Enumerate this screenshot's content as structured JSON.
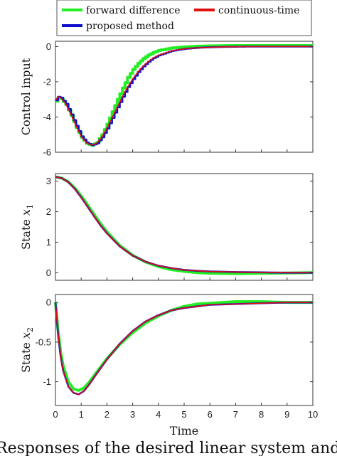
{
  "chart_data": [
    {
      "type": "line",
      "ylabel": "Control input",
      "xlim": [
        0,
        10
      ],
      "ylim": [
        -6,
        0.3
      ],
      "yticks": [
        0,
        -2,
        -4,
        -6
      ],
      "x_ticks_shown": false,
      "series": [
        {
          "name": "forward difference",
          "color": "#22ee22",
          "style": "step",
          "x": [
            0,
            0.1,
            0.2,
            0.4,
            0.6,
            0.8,
            1.0,
            1.2,
            1.4,
            1.6,
            1.8,
            2.0,
            2.2,
            2.4,
            2.6,
            2.8,
            3.0,
            3.2,
            3.4,
            3.6,
            3.8,
            4.0,
            4.5,
            5.0,
            5.5,
            6.0,
            6.5,
            7.0,
            7.5,
            8.0,
            9.0,
            10.0
          ],
          "y": [
            -3.1,
            -2.9,
            -2.95,
            -3.3,
            -3.9,
            -4.6,
            -5.15,
            -5.5,
            -5.6,
            -5.45,
            -5.0,
            -4.4,
            -3.7,
            -3.0,
            -2.35,
            -1.75,
            -1.3,
            -0.95,
            -0.68,
            -0.48,
            -0.33,
            -0.22,
            -0.08,
            -0.02,
            0.02,
            0.04,
            0.05,
            0.06,
            0.06,
            0.06,
            0.06,
            0.06
          ]
        },
        {
          "name": "continuous-time",
          "color": "#e01010",
          "style": "line",
          "x": [
            0,
            0.1,
            0.2,
            0.4,
            0.6,
            0.8,
            1.0,
            1.2,
            1.4,
            1.6,
            1.8,
            2.0,
            2.2,
            2.4,
            2.6,
            2.8,
            3.0,
            3.2,
            3.4,
            3.6,
            3.8,
            4.0,
            4.5,
            5.0,
            5.5,
            6.0,
            6.5,
            7.0,
            7.5,
            8.0,
            9.0,
            10.0
          ],
          "y": [
            -3.05,
            -2.85,
            -2.9,
            -3.25,
            -3.85,
            -4.5,
            -5.1,
            -5.45,
            -5.6,
            -5.5,
            -5.15,
            -4.65,
            -4.05,
            -3.45,
            -2.85,
            -2.3,
            -1.85,
            -1.45,
            -1.12,
            -0.86,
            -0.65,
            -0.5,
            -0.25,
            -0.13,
            -0.07,
            -0.04,
            -0.02,
            -0.01,
            0.0,
            0.0,
            0.0,
            0.0
          ]
        },
        {
          "name": "proposed method",
          "color": "#1010cc",
          "style": "step",
          "x": [
            0,
            0.1,
            0.2,
            0.4,
            0.6,
            0.8,
            1.0,
            1.2,
            1.4,
            1.6,
            1.8,
            2.0,
            2.2,
            2.4,
            2.6,
            2.8,
            3.0,
            3.2,
            3.4,
            3.6,
            3.8,
            4.0,
            4.5,
            5.0,
            5.5,
            6.0,
            6.5,
            7.0,
            7.5,
            8.0,
            9.0,
            10.0
          ],
          "y": [
            -3.05,
            -2.85,
            -2.9,
            -3.25,
            -3.85,
            -4.5,
            -5.1,
            -5.45,
            -5.6,
            -5.5,
            -5.15,
            -4.65,
            -4.05,
            -3.45,
            -2.85,
            -2.3,
            -1.85,
            -1.45,
            -1.12,
            -0.86,
            -0.65,
            -0.5,
            -0.25,
            -0.13,
            -0.07,
            -0.04,
            -0.02,
            -0.01,
            0.0,
            0.0,
            0.0,
            0.0
          ]
        }
      ]
    },
    {
      "type": "line",
      "ylabel_prefix": "State ",
      "ylabel_var": "x",
      "ylabel_sub": "1",
      "xlim": [
        0,
        10
      ],
      "ylim": [
        -0.25,
        3.25
      ],
      "yticks": [
        3,
        2,
        1,
        0
      ],
      "x_ticks_shown": false,
      "series": [
        {
          "name": "forward difference",
          "color": "#22ee22",
          "x": [
            0,
            0.25,
            0.5,
            0.75,
            1.0,
            1.25,
            1.5,
            1.75,
            2.0,
            2.5,
            3.0,
            3.5,
            4.0,
            4.5,
            5.0,
            5.5,
            6.0,
            7.0,
            8.0,
            9.0,
            10.0
          ],
          "y": [
            3.14,
            3.1,
            2.98,
            2.78,
            2.52,
            2.22,
            1.91,
            1.61,
            1.34,
            0.89,
            0.57,
            0.35,
            0.2,
            0.1,
            0.04,
            0.0,
            -0.02,
            -0.03,
            -0.02,
            -0.01,
            0.0
          ]
        },
        {
          "name": "continuous-time",
          "color": "#e01010",
          "x": [
            0,
            0.25,
            0.5,
            0.75,
            1.0,
            1.25,
            1.5,
            1.75,
            2.0,
            2.5,
            3.0,
            3.5,
            4.0,
            4.5,
            5.0,
            5.5,
            6.0,
            7.0,
            8.0,
            9.0,
            10.0
          ],
          "y": [
            3.14,
            3.1,
            2.97,
            2.75,
            2.47,
            2.16,
            1.85,
            1.55,
            1.29,
            0.86,
            0.56,
            0.36,
            0.23,
            0.15,
            0.09,
            0.06,
            0.04,
            0.02,
            0.01,
            0.0,
            0.0
          ]
        },
        {
          "name": "proposed method",
          "color": "#1010cc",
          "x": [
            0,
            0.25,
            0.5,
            0.75,
            1.0,
            1.25,
            1.5,
            1.75,
            2.0,
            2.5,
            3.0,
            3.5,
            4.0,
            4.5,
            5.0,
            5.5,
            6.0,
            7.0,
            8.0,
            9.0,
            10.0
          ],
          "y": [
            3.14,
            3.1,
            2.97,
            2.75,
            2.47,
            2.16,
            1.85,
            1.55,
            1.29,
            0.86,
            0.56,
            0.36,
            0.23,
            0.15,
            0.09,
            0.06,
            0.04,
            0.02,
            0.01,
            0.0,
            0.0
          ]
        }
      ]
    },
    {
      "type": "line",
      "ylabel_prefix": "State ",
      "ylabel_var": "x",
      "ylabel_sub": "2",
      "xlabel": "Time",
      "xlim": [
        0,
        10
      ],
      "ylim": [
        -1.3,
        0.1
      ],
      "yticks": [
        0,
        -0.5,
        -1
      ],
      "xticks": [
        0,
        1,
        2,
        3,
        4,
        5,
        6,
        7,
        8,
        9,
        10
      ],
      "series": [
        {
          "name": "forward difference",
          "color": "#22ee22",
          "x": [
            0,
            0.1,
            0.2,
            0.3,
            0.5,
            0.7,
            0.9,
            1.1,
            1.3,
            1.6,
            2.0,
            2.5,
            3.0,
            3.5,
            4.0,
            4.5,
            5.0,
            5.5,
            6.0,
            7.0,
            8.0,
            9.0,
            10.0
          ],
          "y": [
            0,
            -0.35,
            -0.62,
            -0.8,
            -1.0,
            -1.09,
            -1.11,
            -1.08,
            -1.01,
            -0.88,
            -0.71,
            -0.53,
            -0.38,
            -0.26,
            -0.17,
            -0.1,
            -0.05,
            -0.02,
            -0.01,
            0.01,
            0.01,
            0.0,
            0.0
          ]
        },
        {
          "name": "continuous-time",
          "color": "#e01010",
          "x": [
            0,
            0.1,
            0.2,
            0.3,
            0.5,
            0.7,
            0.9,
            1.1,
            1.3,
            1.6,
            2.0,
            2.5,
            3.0,
            3.5,
            4.0,
            4.5,
            5.0,
            5.5,
            6.0,
            7.0,
            8.0,
            9.0,
            10.0
          ],
          "y": [
            0,
            -0.4,
            -0.68,
            -0.86,
            -1.06,
            -1.14,
            -1.16,
            -1.12,
            -1.04,
            -0.9,
            -0.72,
            -0.52,
            -0.36,
            -0.24,
            -0.16,
            -0.1,
            -0.07,
            -0.05,
            -0.03,
            -0.02,
            -0.01,
            0.0,
            0.0
          ]
        },
        {
          "name": "proposed method",
          "color": "#1010cc",
          "x": [
            0,
            0.1,
            0.2,
            0.3,
            0.5,
            0.7,
            0.9,
            1.1,
            1.3,
            1.6,
            2.0,
            2.5,
            3.0,
            3.5,
            4.0,
            4.5,
            5.0,
            5.5,
            6.0,
            7.0,
            8.0,
            9.0,
            10.0
          ],
          "y": [
            0,
            -0.4,
            -0.68,
            -0.86,
            -1.06,
            -1.14,
            -1.16,
            -1.12,
            -1.04,
            -0.9,
            -0.72,
            -0.52,
            -0.36,
            -0.24,
            -0.16,
            -0.1,
            -0.07,
            -0.05,
            -0.03,
            -0.02,
            -0.01,
            0.0,
            0.0
          ]
        }
      ]
    }
  ],
  "legend": {
    "items": [
      {
        "label": "forward difference",
        "color": "#22ee22"
      },
      {
        "label": "continuous-time",
        "color": "#e01010"
      },
      {
        "label": "proposed method",
        "color": "#1010cc"
      }
    ]
  },
  "caption": "Responses of the desired linear system and di"
}
